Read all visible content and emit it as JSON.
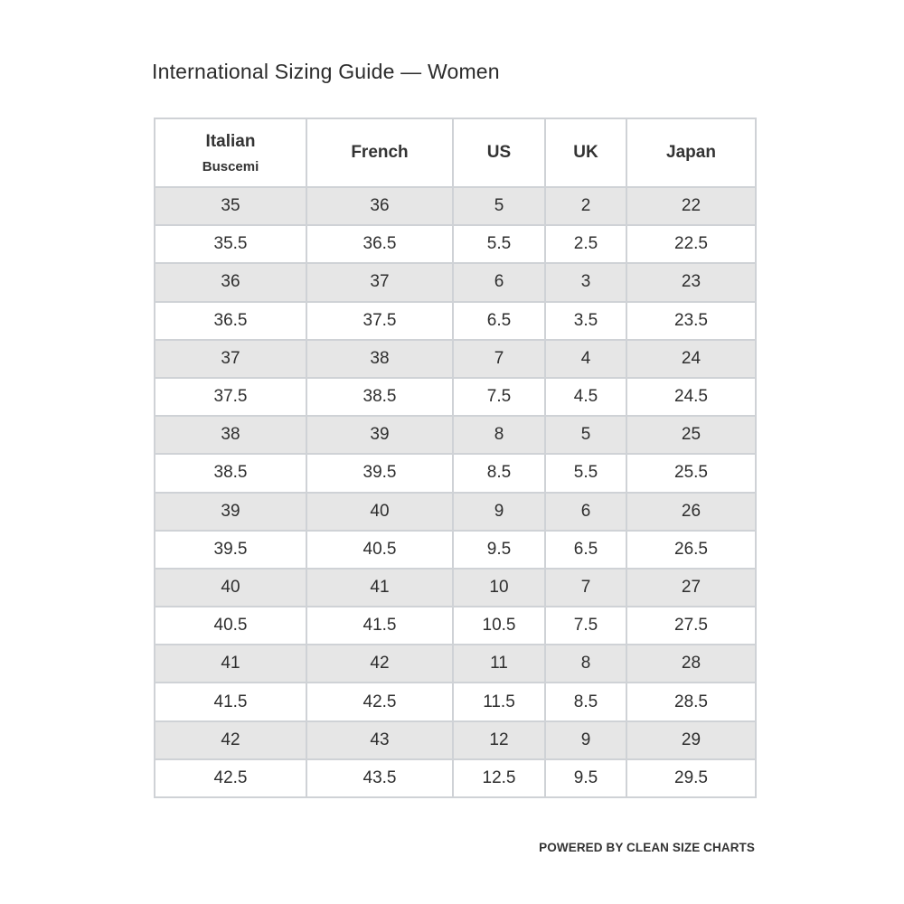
{
  "title": "International Sizing Guide — Women",
  "table": {
    "headers": [
      {
        "label": "Italian",
        "sub": "Buscemi"
      },
      {
        "label": "French",
        "sub": ""
      },
      {
        "label": "US",
        "sub": ""
      },
      {
        "label": "UK",
        "sub": ""
      },
      {
        "label": "Japan",
        "sub": ""
      }
    ],
    "rows": [
      [
        "35",
        "36",
        "5",
        "2",
        "22"
      ],
      [
        "35.5",
        "36.5",
        "5.5",
        "2.5",
        "22.5"
      ],
      [
        "36",
        "37",
        "6",
        "3",
        "23"
      ],
      [
        "36.5",
        "37.5",
        "6.5",
        "3.5",
        "23.5"
      ],
      [
        "37",
        "38",
        "7",
        "4",
        "24"
      ],
      [
        "37.5",
        "38.5",
        "7.5",
        "4.5",
        "24.5"
      ],
      [
        "38",
        "39",
        "8",
        "5",
        "25"
      ],
      [
        "38.5",
        "39.5",
        "8.5",
        "5.5",
        "25.5"
      ],
      [
        "39",
        "40",
        "9",
        "6",
        "26"
      ],
      [
        "39.5",
        "40.5",
        "9.5",
        "6.5",
        "26.5"
      ],
      [
        "40",
        "41",
        "10",
        "7",
        "27"
      ],
      [
        "40.5",
        "41.5",
        "10.5",
        "7.5",
        "27.5"
      ],
      [
        "41",
        "42",
        "11",
        "8",
        "28"
      ],
      [
        "41.5",
        "42.5",
        "11.5",
        "8.5",
        "28.5"
      ],
      [
        "42",
        "43",
        "12",
        "9",
        "29"
      ],
      [
        "42.5",
        "43.5",
        "12.5",
        "9.5",
        "29.5"
      ]
    ]
  },
  "footer": "POWERED BY CLEAN SIZE CHARTS",
  "colors": {
    "shaded_row": "#e6e6e6",
    "border": "#cfd2d6"
  }
}
